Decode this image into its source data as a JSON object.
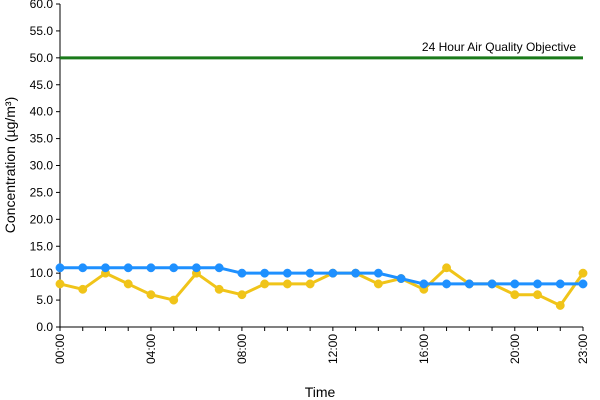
{
  "chart_data": {
    "type": "line",
    "xlabel": "Time",
    "ylabel": "Concentration (µg/m³)",
    "x": [
      "00:00",
      "01:00",
      "02:00",
      "03:00",
      "04:00",
      "05:00",
      "06:00",
      "07:00",
      "08:00",
      "09:00",
      "10:00",
      "11:00",
      "12:00",
      "13:00",
      "14:00",
      "15:00",
      "16:00",
      "17:00",
      "18:00",
      "19:00",
      "20:00",
      "21:00",
      "22:00",
      "23:00"
    ],
    "x_tick_labels": [
      "00:00",
      "04:00",
      "08:00",
      "12:00",
      "16:00",
      "20:00",
      "23:00"
    ],
    "ylim": [
      0,
      60
    ],
    "y_tick_labels": [
      "0.0",
      "5.0",
      "10.0",
      "15.0",
      "20.0",
      "25.0",
      "30.0",
      "35.0",
      "40.0",
      "45.0",
      "50.0",
      "55.0",
      "60.0"
    ],
    "grid": false,
    "series": [
      {
        "color": "#f0c419",
        "values": [
          8,
          7,
          10,
          8,
          6,
          5,
          10,
          7,
          6,
          8,
          8,
          8,
          10,
          10,
          8,
          9,
          7,
          11,
          8,
          8,
          6,
          6,
          4,
          10
        ]
      },
      {
        "color": "#1e90ff",
        "values": [
          11,
          11,
          11,
          11,
          11,
          11,
          11,
          11,
          10,
          10,
          10,
          10,
          10,
          10,
          10,
          9,
          8,
          8,
          8,
          8,
          8,
          8,
          8,
          8
        ]
      }
    ],
    "reference_line": {
      "value": 50,
      "label": "24 Hour Air Quality Objective",
      "color": "#1a7a1a"
    }
  }
}
